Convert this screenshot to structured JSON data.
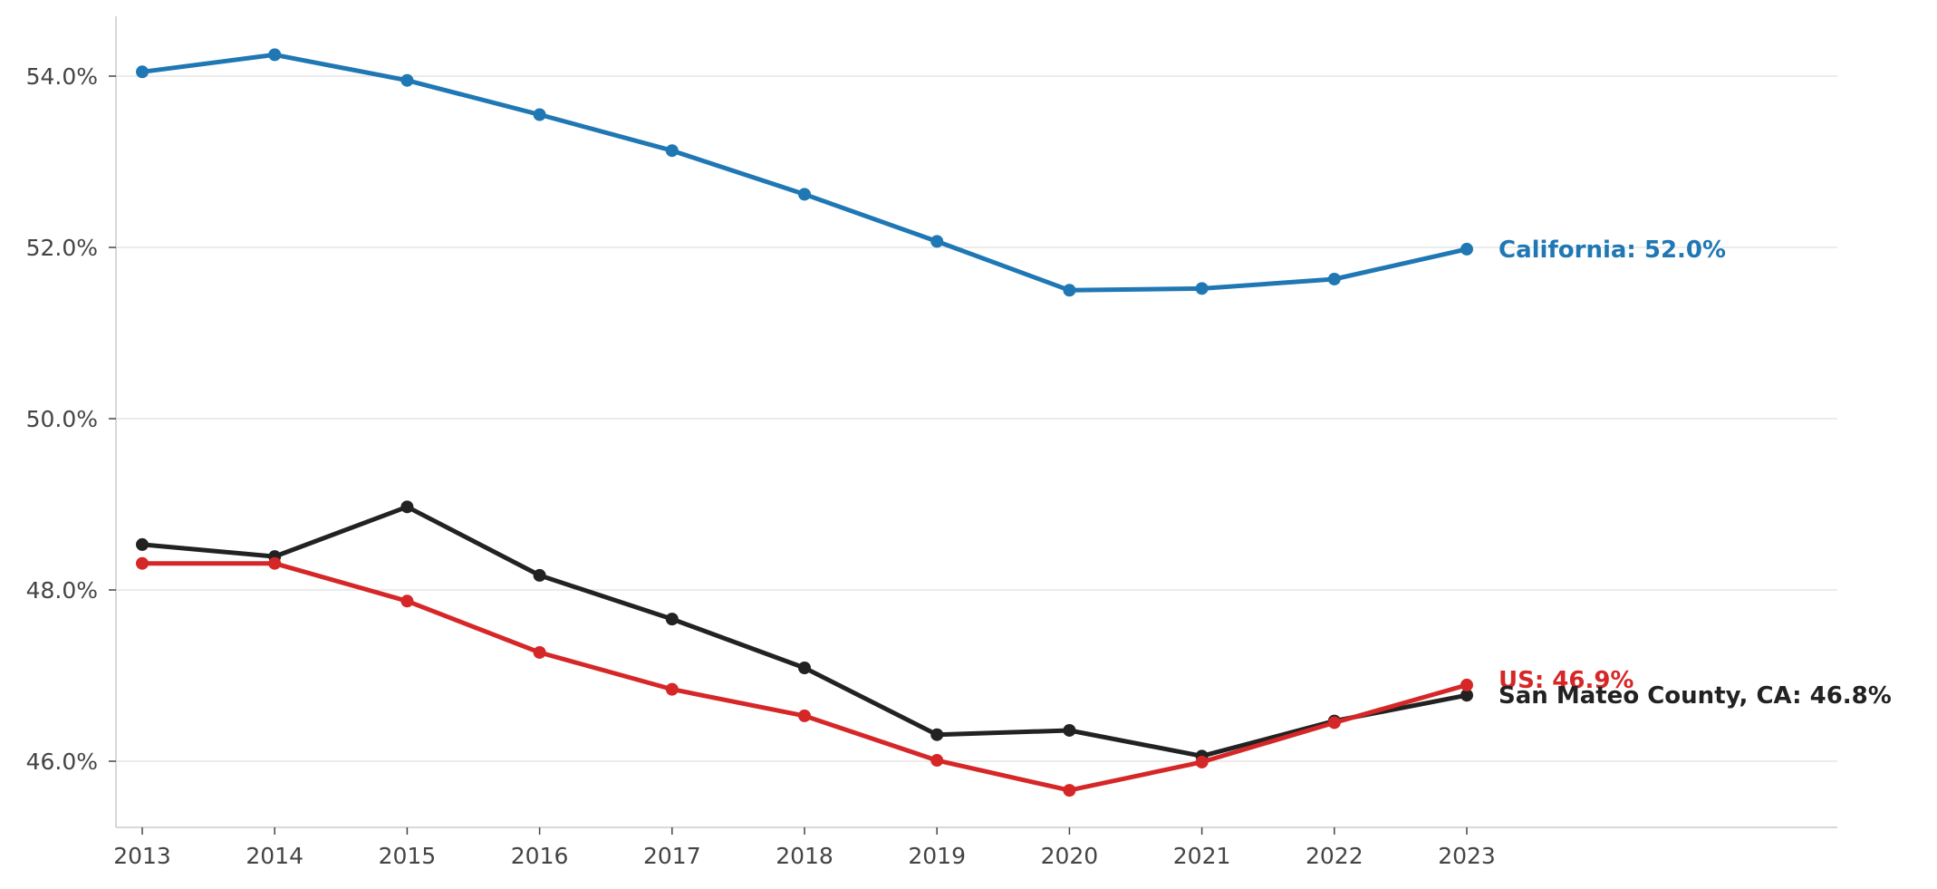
{
  "chart_data": {
    "type": "line",
    "title": "",
    "xlabel": "",
    "ylabel": "",
    "x": [
      2013,
      2014,
      2015,
      2016,
      2017,
      2018,
      2019,
      2020,
      2021,
      2022,
      2023
    ],
    "xlim": [
      2012.8,
      2026
    ],
    "ylim": [
      45.3,
      54.7
    ],
    "yticks": [
      46.0,
      48.0,
      50.0,
      52.0,
      54.0
    ],
    "ytick_labels": [
      "46.0%",
      "48.0%",
      "50.0%",
      "52.0%",
      "54.0%"
    ],
    "xtick_labels": [
      "2013",
      "2014",
      "2015",
      "2016",
      "2017",
      "2018",
      "2019",
      "2020",
      "2021",
      "2022",
      "2023"
    ],
    "grid": "horizontal",
    "legend": "none (end-of-line labels)",
    "series": [
      {
        "name": "California",
        "color": "#1f77b4",
        "values": [
          54.05,
          54.25,
          53.95,
          53.55,
          53.13,
          52.62,
          52.07,
          51.5,
          51.52,
          51.63,
          51.98
        ],
        "end_label": "California: 52.0%"
      },
      {
        "name": "San Mateo County, CA",
        "color": "#222222",
        "values": [
          48.53,
          48.39,
          48.97,
          48.17,
          47.66,
          47.09,
          46.31,
          46.36,
          46.06,
          46.47,
          46.77
        ],
        "end_label": "San Mateo County, CA: 46.8%"
      },
      {
        "name": "US",
        "color": "#d62728",
        "values": [
          48.31,
          48.31,
          47.87,
          47.27,
          46.84,
          46.53,
          46.01,
          45.66,
          45.99,
          46.45,
          46.89
        ],
        "end_label": "US: 46.9%"
      }
    ]
  }
}
